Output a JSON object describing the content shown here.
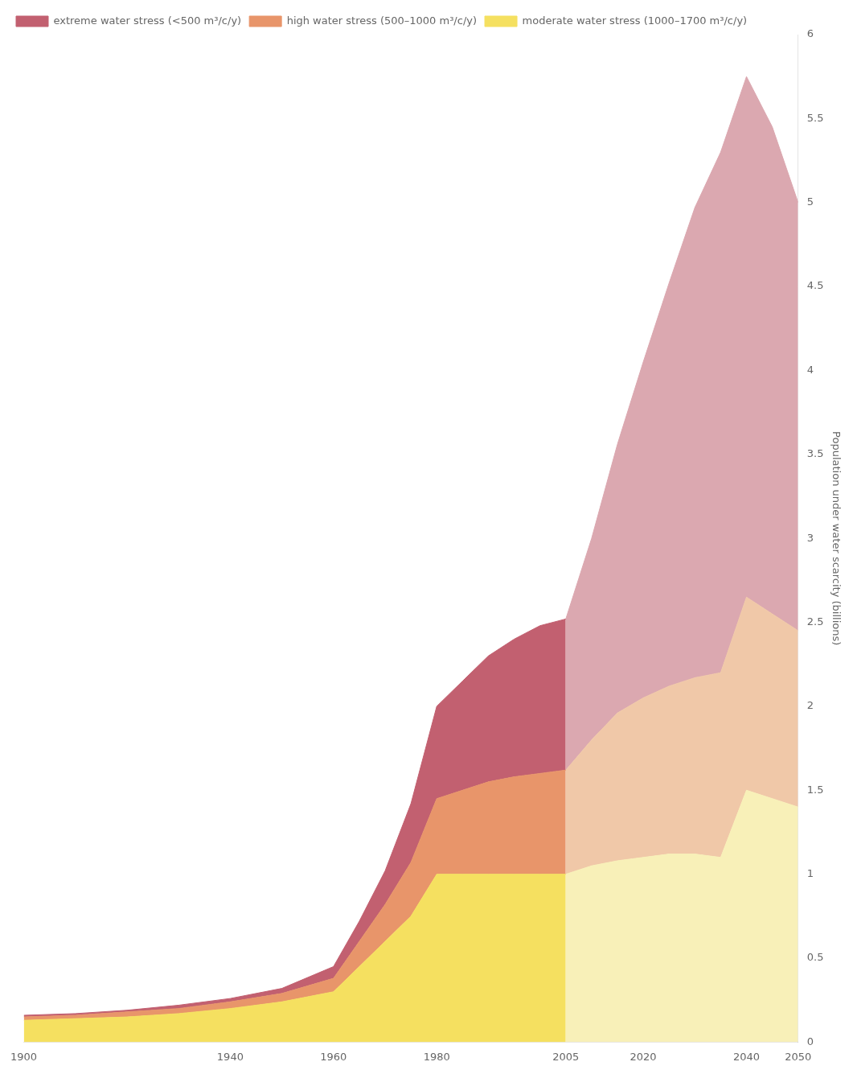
{
  "chart_data": {
    "type": "area",
    "stacked": true,
    "grid": false,
    "legend": "upper left",
    "ylabel": "Population under water scarcity (billions)",
    "xlim": [
      1900,
      2050
    ],
    "ylim": [
      0,
      6
    ],
    "xticks": [
      1900,
      1940,
      1960,
      1980,
      2005,
      2020,
      2040,
      2050
    ],
    "yticks": [
      0,
      0.5,
      1,
      1.5,
      2,
      2.5,
      3,
      3.5,
      4,
      4.5,
      5,
      5.5,
      6
    ],
    "series": [
      {
        "name": "moderate water stress (1000–1700 m³/c/y)",
        "color": "#f5e060",
        "x": [
          1900,
          1910,
          1920,
          1930,
          1940,
          1950,
          1960,
          1965,
          1970,
          1975,
          1980,
          1985,
          1990,
          1995,
          2000,
          2005
        ],
        "values": [
          0.13,
          0.14,
          0.15,
          0.17,
          0.2,
          0.24,
          0.3,
          0.45,
          0.6,
          0.75,
          1.0,
          1.0,
          1.0,
          1.0,
          1.0,
          1.0
        ]
      },
      {
        "name": "high water stress (500–1000 m³/c/y)",
        "color": "#e8956a",
        "x": [
          1900,
          1910,
          1920,
          1930,
          1940,
          1950,
          1960,
          1965,
          1970,
          1975,
          1980,
          1985,
          1990,
          1995,
          2000,
          2005
        ],
        "values": [
          0.02,
          0.02,
          0.03,
          0.03,
          0.04,
          0.05,
          0.08,
          0.15,
          0.22,
          0.32,
          0.45,
          0.5,
          0.55,
          0.58,
          0.6,
          0.62
        ]
      },
      {
        "name": "extreme water stress (<500 m³/c/y)",
        "color": "#c26070",
        "x": [
          1900,
          1910,
          1920,
          1930,
          1940,
          1950,
          1960,
          1965,
          1970,
          1975,
          1980,
          1985,
          1990,
          1995,
          2000,
          2005
        ],
        "values": [
          0.01,
          0.01,
          0.01,
          0.02,
          0.02,
          0.03,
          0.07,
          0.12,
          0.2,
          0.35,
          0.55,
          0.65,
          0.75,
          0.82,
          0.88,
          0.9
        ]
      },
      {
        "color": "#f8f0b8",
        "x": [
          2005,
          2010,
          2015,
          2020,
          2025,
          2030,
          2035,
          2040,
          2045,
          2050
        ],
        "values": [
          1.0,
          1.05,
          1.08,
          1.1,
          1.12,
          1.12,
          1.1,
          1.5,
          1.45,
          1.4
        ]
      },
      {
        "color": "#f0c8a8",
        "x": [
          2005,
          2010,
          2015,
          2020,
          2025,
          2030,
          2035,
          2040,
          2045,
          2050
        ],
        "values": [
          0.62,
          0.75,
          0.88,
          0.95,
          1.0,
          1.05,
          1.1,
          1.15,
          1.1,
          1.05
        ]
      },
      {
        "color": "#dba8b0",
        "x": [
          2005,
          2010,
          2015,
          2020,
          2025,
          2030,
          2035,
          2040,
          2045,
          2050
        ],
        "values": [
          0.9,
          1.2,
          1.6,
          2.0,
          2.4,
          2.8,
          3.1,
          3.1,
          2.9,
          2.55
        ]
      }
    ]
  }
}
